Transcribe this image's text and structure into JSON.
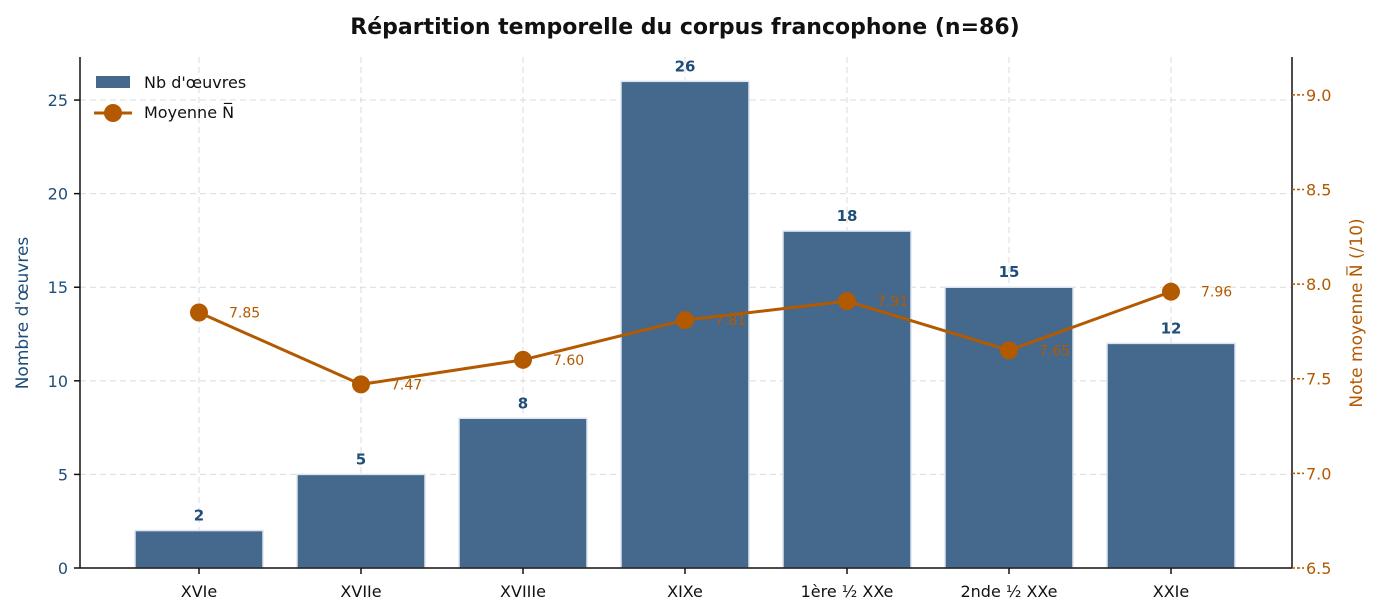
{
  "chart_data": {
    "type": "bar",
    "title": "Répartition temporelle du corpus francophone (n=86)",
    "categories": [
      "XVIe",
      "XVIIe",
      "XVIIIe",
      "XIXe",
      "1ère ½ XXe",
      "2nde ½ XXe",
      "XXIe"
    ],
    "series": [
      {
        "name": "Nb d'œuvres",
        "kind": "bar",
        "axis": "left",
        "values": [
          2,
          5,
          8,
          26,
          18,
          15,
          12
        ],
        "labels": [
          "2",
          "5",
          "8",
          "26",
          "18",
          "15",
          "12"
        ],
        "color": "#44698d"
      },
      {
        "name": "Moyenne N̅",
        "kind": "line",
        "axis": "right",
        "values": [
          7.85,
          7.47,
          7.6,
          7.81,
          7.91,
          7.65,
          7.96
        ],
        "labels": [
          "7.85",
          "7.47",
          "7.60",
          "7.81",
          "7.91",
          "7.65",
          "7.96"
        ],
        "color": "#b35900"
      }
    ],
    "ylabel": "Nombre d'œuvres",
    "ylabel2": "Note moyenne N̅ (/10)",
    "ylim": [
      0,
      27.3
    ],
    "ylim2": [
      6.5,
      9.2
    ],
    "yticks": [
      "0",
      "5",
      "10",
      "15",
      "20",
      "25"
    ],
    "yticks2": [
      "6.5",
      "7.0",
      "7.5",
      "8.0",
      "8.5",
      "9.0"
    ],
    "grid": true,
    "legend_position": "top-left",
    "axis_colors": {
      "left": "#1f4e79",
      "right": "#b35900"
    }
  }
}
